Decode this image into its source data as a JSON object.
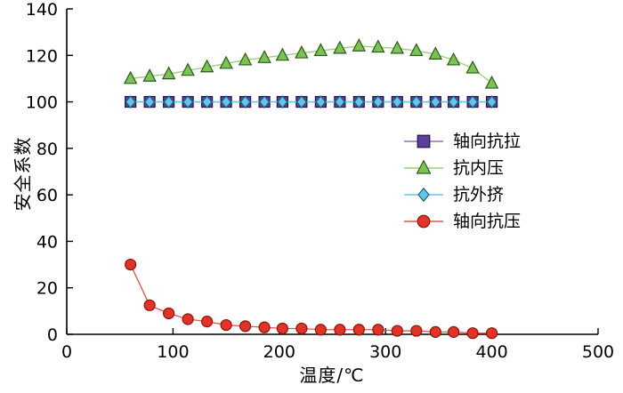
{
  "chart_data": {
    "type": "line",
    "title": "",
    "xlabel": "温度/℃",
    "ylabel": "安全系数",
    "xlim": [
      0,
      500
    ],
    "ylim": [
      0,
      140
    ],
    "xticks": [
      0,
      100,
      200,
      300,
      400,
      500
    ],
    "yticks": [
      0,
      20,
      40,
      60,
      80,
      100,
      120,
      140
    ],
    "grid": false,
    "legend_position": "center-right",
    "x": [
      60,
      78,
      96,
      114,
      132,
      150,
      168,
      186,
      203,
      221,
      239,
      257,
      275,
      293,
      311,
      329,
      347,
      364,
      382,
      400
    ],
    "series": [
      {
        "id": "axial-tensile",
        "name": "轴向抗拉",
        "marker": "square",
        "marker_color": "#5d3f99",
        "marker_edge": "#26134d",
        "line_color": "#8a75c0",
        "values": [
          100,
          100,
          100,
          100,
          100,
          100,
          100,
          100,
          100,
          100,
          100,
          100,
          100,
          100,
          100,
          100,
          100,
          100,
          100,
          100
        ]
      },
      {
        "id": "internal-pressure",
        "name": "抗内压",
        "marker": "triangle",
        "marker_color": "#7cc356",
        "marker_edge": "#2d5a1b",
        "line_color": "#9bcd77",
        "values": [
          110,
          111,
          112,
          113.5,
          115,
          116.5,
          118,
          119,
          120,
          121,
          122,
          123,
          124,
          123.5,
          123,
          122,
          120.5,
          118,
          114.5,
          108
        ]
      },
      {
        "id": "external-collapse",
        "name": "抗外挤",
        "marker": "diamond",
        "marker_color": "#63c6e9",
        "marker_edge": "#1c607e",
        "line_color": "#63c6e9",
        "values": [
          100,
          100,
          100,
          100,
          100,
          100,
          100,
          100,
          100,
          100,
          100,
          100,
          100,
          100,
          100,
          100,
          100,
          100,
          100,
          100
        ]
      },
      {
        "id": "axial-compressive",
        "name": "轴向抗压",
        "marker": "circle",
        "marker_color": "#e03427",
        "marker_edge": "#8c130b",
        "line_color": "#e25549",
        "values": [
          30,
          12.5,
          9,
          6.5,
          5.5,
          4,
          3.5,
          3,
          2.5,
          2.5,
          2,
          2,
          2,
          2,
          1.5,
          1.5,
          1,
          1,
          0.5,
          0.5
        ]
      }
    ]
  }
}
